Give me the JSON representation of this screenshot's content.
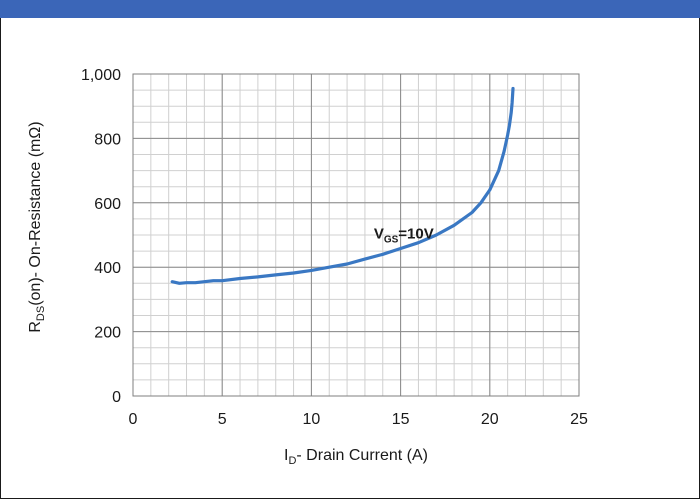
{
  "header": {
    "color": "#3b66b8"
  },
  "chart_data": {
    "type": "line",
    "xlabel": {
      "main": "I",
      "sub": "D",
      "rest": "- Drain Current (A)"
    },
    "ylabel": {
      "main": "R",
      "sub": "DS",
      "rest": "(on)- On-Resistance (mΩ)"
    },
    "xlim": [
      0,
      25
    ],
    "ylim": [
      0,
      1000
    ],
    "x_ticks": [
      {
        "value": 0,
        "label": "0"
      },
      {
        "value": 5,
        "label": "5"
      },
      {
        "value": 10,
        "label": "10"
      },
      {
        "value": 15,
        "label": "15"
      },
      {
        "value": 20,
        "label": "20"
      },
      {
        "value": 25,
        "label": "25"
      }
    ],
    "y_ticks": [
      {
        "value": 0,
        "label": "0"
      },
      {
        "value": 200,
        "label": "200"
      },
      {
        "value": 400,
        "label": "400"
      },
      {
        "value": 600,
        "label": "600"
      },
      {
        "value": 800,
        "label": "800"
      },
      {
        "value": 1000,
        "label": "1,000"
      }
    ],
    "grid": true,
    "minor_x_step": 1,
    "minor_y_step": 50,
    "series": [
      {
        "color": "#3a78c3",
        "x": [
          2.2,
          2.6,
          3.0,
          3.5,
          4.0,
          4.5,
          5.0,
          6.0,
          7.0,
          8.0,
          9.0,
          10.0,
          11.0,
          12.0,
          13.0,
          14.0,
          15.0,
          16.0,
          17.0,
          18.0,
          19.0,
          19.5,
          20.0,
          20.5,
          20.8,
          21.0,
          21.1,
          21.2,
          21.25,
          21.3
        ],
        "y": [
          355,
          350,
          352,
          352,
          355,
          358,
          358,
          365,
          370,
          376,
          382,
          390,
          400,
          410,
          425,
          440,
          458,
          476,
          500,
          530,
          570,
          600,
          640,
          700,
          760,
          810,
          840,
          880,
          910,
          955
        ]
      }
    ],
    "annotation": {
      "x": 13.5,
      "y": 520,
      "main": "V",
      "sub": "GS",
      "rest": "=10V"
    }
  }
}
